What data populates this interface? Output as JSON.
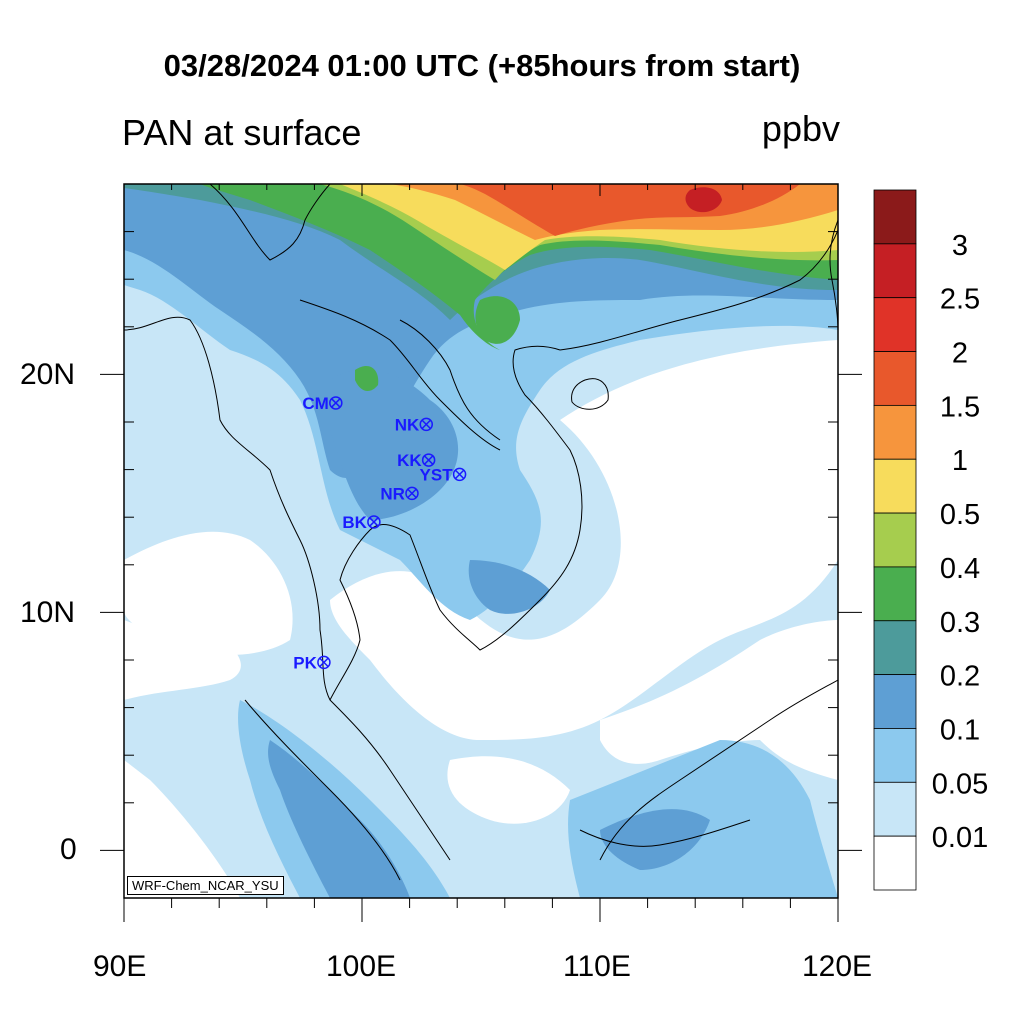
{
  "title": "03/28/2024 01:00 UTC (+85hours from start)",
  "subtitle": "PAN at surface",
  "units": "ppbv",
  "credit": "WRF-Chem_NCAR_YSU",
  "axes": {
    "x_ticks": [
      "90E",
      "100E",
      "110E",
      "120E"
    ],
    "y_ticks": [
      "20N",
      "10N",
      "0"
    ],
    "lon_range": [
      90,
      120
    ],
    "lat_range": [
      -2,
      28
    ]
  },
  "legend": {
    "labels": [
      "3",
      "2.5",
      "2",
      "1.5",
      "1",
      "0.5",
      "0.4",
      "0.3",
      "0.2",
      "0.1",
      "0.05",
      "0.01"
    ],
    "colors": [
      "#8b1a1a",
      "#c51f24",
      "#e03328",
      "#e8582c",
      "#f6953d",
      "#f7dc5c",
      "#a6cd4e",
      "#4aae4f",
      "#4d9b9b",
      "#5e9fd4",
      "#8cc9ee",
      "#c8e6f7",
      "#ffffff"
    ]
  },
  "stations": [
    {
      "name": "CM",
      "lon": 98.9,
      "lat": 18.8
    },
    {
      "name": "NK",
      "lon": 102.7,
      "lat": 17.9
    },
    {
      "name": "KK",
      "lon": 102.8,
      "lat": 16.4
    },
    {
      "name": "YST",
      "lon": 104.1,
      "lat": 15.8
    },
    {
      "name": "NR",
      "lon": 102.1,
      "lat": 15.0
    },
    {
      "name": "BK",
      "lon": 100.5,
      "lat": 13.8
    },
    {
      "name": "PK",
      "lon": 98.4,
      "lat": 7.9
    }
  ]
}
